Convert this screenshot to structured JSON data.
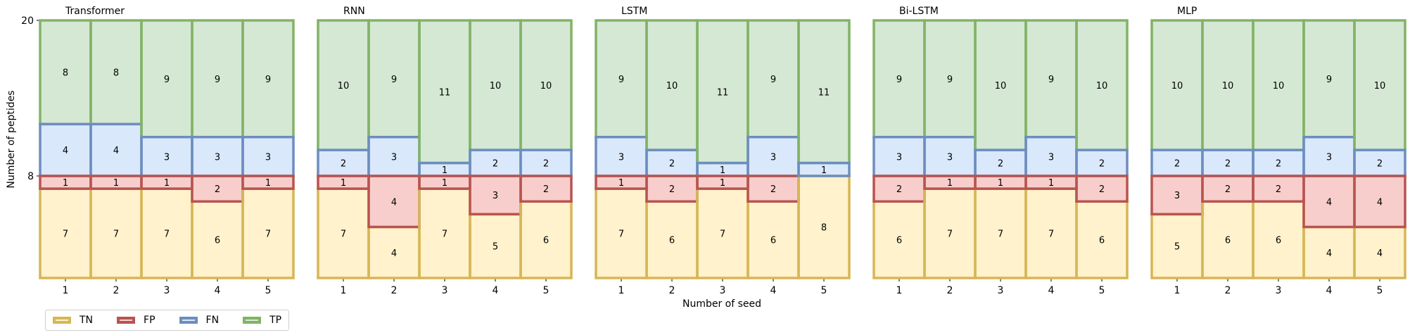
{
  "chart_data": {
    "type": "bar",
    "subtype": "stacked-confusion-bars",
    "ylabel": "Number of peptides",
    "xlabel": "Number of seed",
    "y_ticks": [
      "20",
      "8"
    ],
    "categories": [
      "1",
      "2",
      "3",
      "4",
      "5"
    ],
    "legend": {
      "placement": "bottom-left",
      "entries": [
        {
          "key": "TN",
          "label": "TN",
          "fill": "#fff2cc",
          "edge": "#d6b656"
        },
        {
          "key": "FP",
          "label": "FP",
          "fill": "#f8cecc",
          "edge": "#b85450"
        },
        {
          "key": "FN",
          "label": "FN",
          "fill": "#dae8fc",
          "edge": "#6c8ebf"
        },
        {
          "key": "TP",
          "label": "TP",
          "fill": "#d5e8d4",
          "edge": "#82b366"
        }
      ]
    },
    "panels": [
      {
        "title": "Transformer",
        "TN": [
          7,
          7,
          7,
          6,
          7
        ],
        "FP": [
          1,
          1,
          1,
          2,
          1
        ],
        "FN": [
          4,
          4,
          3,
          3,
          3
        ],
        "TP": [
          8,
          8,
          9,
          9,
          9
        ]
      },
      {
        "title": "RNN",
        "TN": [
          7,
          4,
          7,
          5,
          6
        ],
        "FP": [
          1,
          4,
          1,
          3,
          2
        ],
        "FN": [
          2,
          3,
          1,
          2,
          2
        ],
        "TP": [
          10,
          9,
          11,
          10,
          10
        ]
      },
      {
        "title": "LSTM",
        "TN": [
          7,
          6,
          7,
          6,
          8
        ],
        "FP": [
          1,
          2,
          1,
          2,
          0
        ],
        "FN": [
          3,
          2,
          1,
          3,
          1
        ],
        "TP": [
          9,
          10,
          11,
          9,
          11
        ]
      },
      {
        "title": "Bi-LSTM",
        "TN": [
          6,
          7,
          7,
          7,
          6
        ],
        "FP": [
          2,
          1,
          1,
          1,
          2
        ],
        "FN": [
          3,
          3,
          2,
          3,
          2
        ],
        "TP": [
          9,
          9,
          10,
          9,
          10
        ]
      },
      {
        "title": "MLP",
        "TN": [
          5,
          6,
          6,
          4,
          4
        ],
        "FP": [
          3,
          2,
          2,
          4,
          4
        ],
        "FN": [
          2,
          2,
          2,
          3,
          2
        ],
        "TP": [
          10,
          10,
          10,
          9,
          10
        ]
      }
    ]
  }
}
